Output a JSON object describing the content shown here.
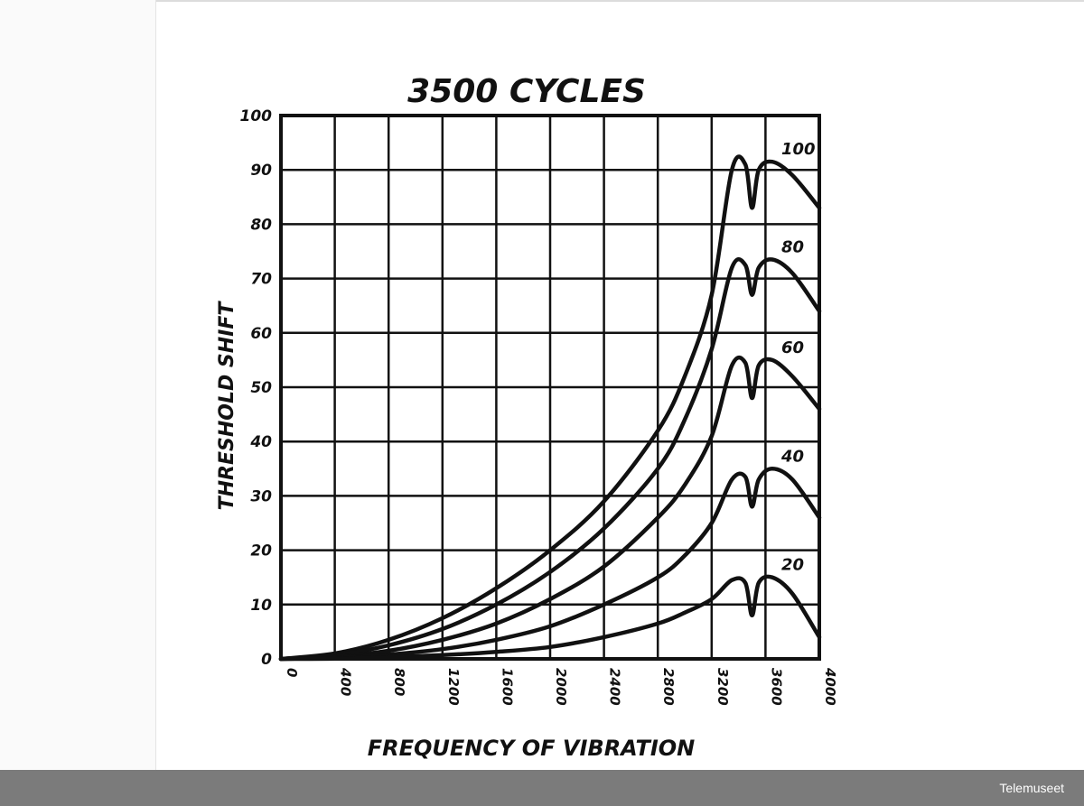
{
  "chart_data": {
    "type": "line",
    "title": "3500 CYCLES",
    "xlabel": "FREQUENCY OF VIBRATION",
    "ylabel": "THRESHOLD SHIFT",
    "xlim": [
      0,
      4000
    ],
    "ylim": [
      0,
      100
    ],
    "x_ticks": [
      "0",
      "400",
      "800",
      "1200",
      "1600",
      "2000",
      "2400",
      "2800",
      "3200",
      "3600",
      "4000"
    ],
    "y_ticks": [
      "0",
      "10",
      "20",
      "30",
      "40",
      "50",
      "60",
      "70",
      "80",
      "90",
      "100"
    ],
    "grid": true,
    "x": [
      0,
      400,
      800,
      1200,
      1600,
      2000,
      2400,
      2800,
      3000,
      3200,
      3350,
      3450,
      3500,
      3550,
      3650,
      3800,
      4000
    ],
    "series": [
      {
        "name": "100",
        "values": [
          0,
          1,
          3.5,
          7.5,
          13,
          20,
          29,
          42,
          52,
          67,
          90,
          91,
          83,
          90,
          91.5,
          89,
          83
        ]
      },
      {
        "name": "80",
        "values": [
          0,
          0.7,
          2.5,
          5.5,
          10,
          16,
          24,
          35,
          44,
          57,
          72,
          72.5,
          67,
          72,
          73.5,
          71,
          64
        ]
      },
      {
        "name": "60",
        "values": [
          0,
          0.4,
          1.5,
          3.5,
          6.5,
          11,
          17,
          26,
          32,
          41,
          54,
          54.5,
          48,
          54,
          55,
          52,
          46
        ]
      },
      {
        "name": "40",
        "values": [
          0,
          0.2,
          0.8,
          1.8,
          3.5,
          6,
          10,
          15,
          19,
          25,
          33,
          33.5,
          28,
          33,
          35,
          33,
          26
        ]
      },
      {
        "name": "20",
        "values": [
          0,
          0.05,
          0.3,
          0.7,
          1.3,
          2.2,
          4,
          6.5,
          8.5,
          11,
          14.5,
          14,
          8,
          14,
          15,
          12,
          4
        ]
      }
    ]
  },
  "footer": {
    "credit": "Telemuseet"
  }
}
